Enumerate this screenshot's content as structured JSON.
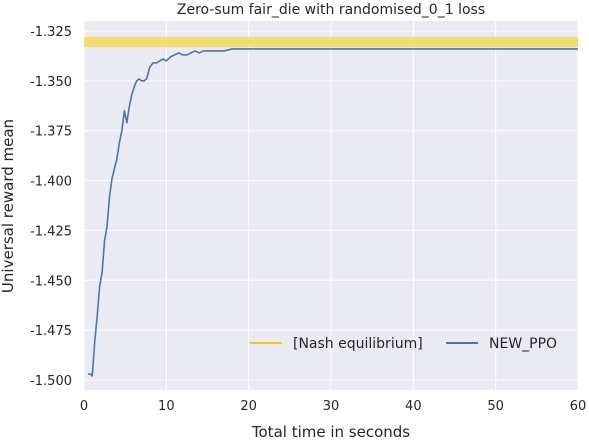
{
  "chart_data": {
    "type": "line",
    "title": "Zero-sum fair_die with randomised_0_1 loss",
    "xlabel": "Total time in seconds",
    "ylabel": "Universal reward mean",
    "xlim": [
      0,
      60
    ],
    "ylim": [
      -1.505,
      -1.32
    ],
    "xticks": [
      0,
      10,
      20,
      30,
      40,
      50,
      60
    ],
    "xtick_labels": [
      "0",
      "10",
      "20",
      "30",
      "40",
      "50",
      "60"
    ],
    "yticks": [
      -1.5,
      -1.475,
      -1.45,
      -1.425,
      -1.4,
      -1.375,
      -1.35,
      -1.325
    ],
    "ytick_labels": [
      "-1.500",
      "-1.475",
      "-1.450",
      "-1.425",
      "-1.400",
      "-1.375",
      "-1.350",
      "-1.325"
    ],
    "grid": true,
    "legend_position": "lower-right",
    "colors": {
      "background": "#eaeaf2",
      "grid": "#ffffff",
      "nash": "#f5c518",
      "nash_band": "#f3dc6e",
      "ppo": "#4c72b0"
    },
    "nash_band": {
      "ymin": -1.333,
      "ymax": -1.328
    },
    "series": [
      {
        "name": "[Nash equilibrium]",
        "kind": "band",
        "color": "#f5c518"
      },
      {
        "name": "NEW_PPO",
        "kind": "line",
        "color": "#4c72b0",
        "x": [
          0.5,
          0.8,
          1.0,
          1.3,
          1.6,
          1.9,
          2.2,
          2.5,
          2.8,
          3.1,
          3.4,
          3.7,
          4.0,
          4.3,
          4.6,
          4.9,
          5.2,
          5.5,
          5.8,
          6.1,
          6.4,
          6.7,
          7.0,
          7.3,
          7.6,
          8.0,
          8.4,
          8.8,
          9.2,
          9.6,
          10.0,
          10.5,
          11.0,
          11.5,
          12.0,
          12.5,
          13.0,
          13.5,
          14.0,
          14.5,
          15.0,
          15.5,
          16.0,
          16.5,
          17.0,
          18.0,
          19.0,
          20.0,
          21.0,
          22.0,
          23.0,
          24.0,
          25.0,
          26.0,
          28.0,
          30.0,
          32.0,
          34.0,
          36.0,
          38.0,
          40.0,
          42.0,
          44.0,
          46.0,
          48.0,
          50.0,
          52.0,
          54.0,
          56.0,
          58.0,
          60.0
        ],
        "y": [
          -1.497,
          -1.497,
          -1.498,
          -1.481,
          -1.468,
          -1.453,
          -1.446,
          -1.43,
          -1.423,
          -1.408,
          -1.399,
          -1.394,
          -1.389,
          -1.381,
          -1.375,
          -1.365,
          -1.371,
          -1.363,
          -1.357,
          -1.353,
          -1.35,
          -1.349,
          -1.35,
          -1.35,
          -1.349,
          -1.343,
          -1.341,
          -1.341,
          -1.34,
          -1.339,
          -1.34,
          -1.338,
          -1.337,
          -1.336,
          -1.337,
          -1.337,
          -1.336,
          -1.335,
          -1.336,
          -1.335,
          -1.335,
          -1.335,
          -1.335,
          -1.335,
          -1.335,
          -1.334,
          -1.334,
          -1.334,
          -1.334,
          -1.334,
          -1.334,
          -1.334,
          -1.334,
          -1.334,
          -1.334,
          -1.334,
          -1.334,
          -1.334,
          -1.334,
          -1.334,
          -1.334,
          -1.334,
          -1.334,
          -1.334,
          -1.334,
          -1.334,
          -1.334,
          -1.334,
          -1.334,
          -1.334,
          -1.334
        ]
      }
    ]
  }
}
